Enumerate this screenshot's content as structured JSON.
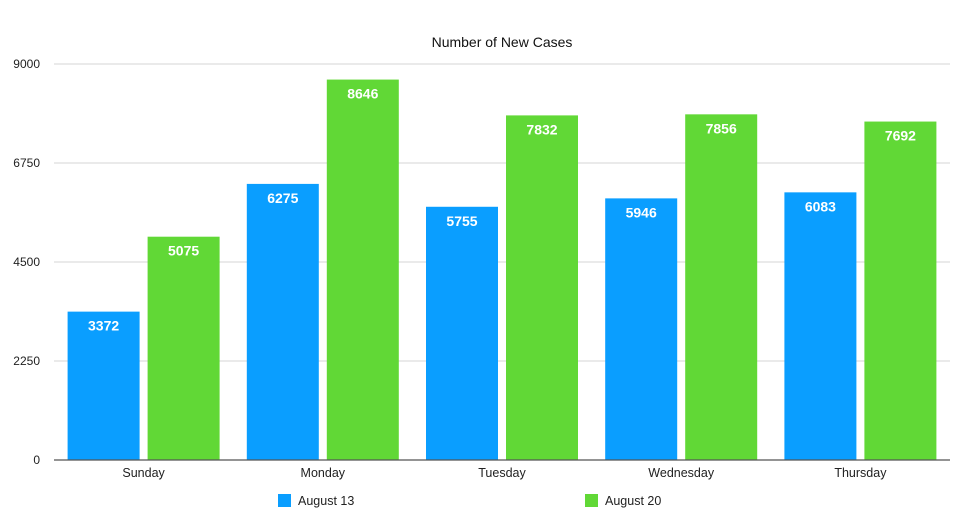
{
  "chart_data": {
    "type": "bar",
    "title": "Number of New Cases",
    "xlabel": "",
    "ylabel": "",
    "categories": [
      "Sunday",
      "Monday",
      "Tuesday",
      "Wednesday",
      "Thursday"
    ],
    "series": [
      {
        "name": "August 13",
        "color": "#0a9eff",
        "values": [
          3372,
          6275,
          5755,
          5946,
          6083
        ]
      },
      {
        "name": "August 20",
        "color": "#61d836",
        "values": [
          5075,
          8646,
          7832,
          7856,
          7692
        ]
      }
    ],
    "ylim": [
      0,
      9000
    ],
    "yticks": [
      0,
      2250,
      4500,
      6750,
      9000
    ],
    "grid": true,
    "legend_position": "bottom",
    "data_labels": true
  }
}
